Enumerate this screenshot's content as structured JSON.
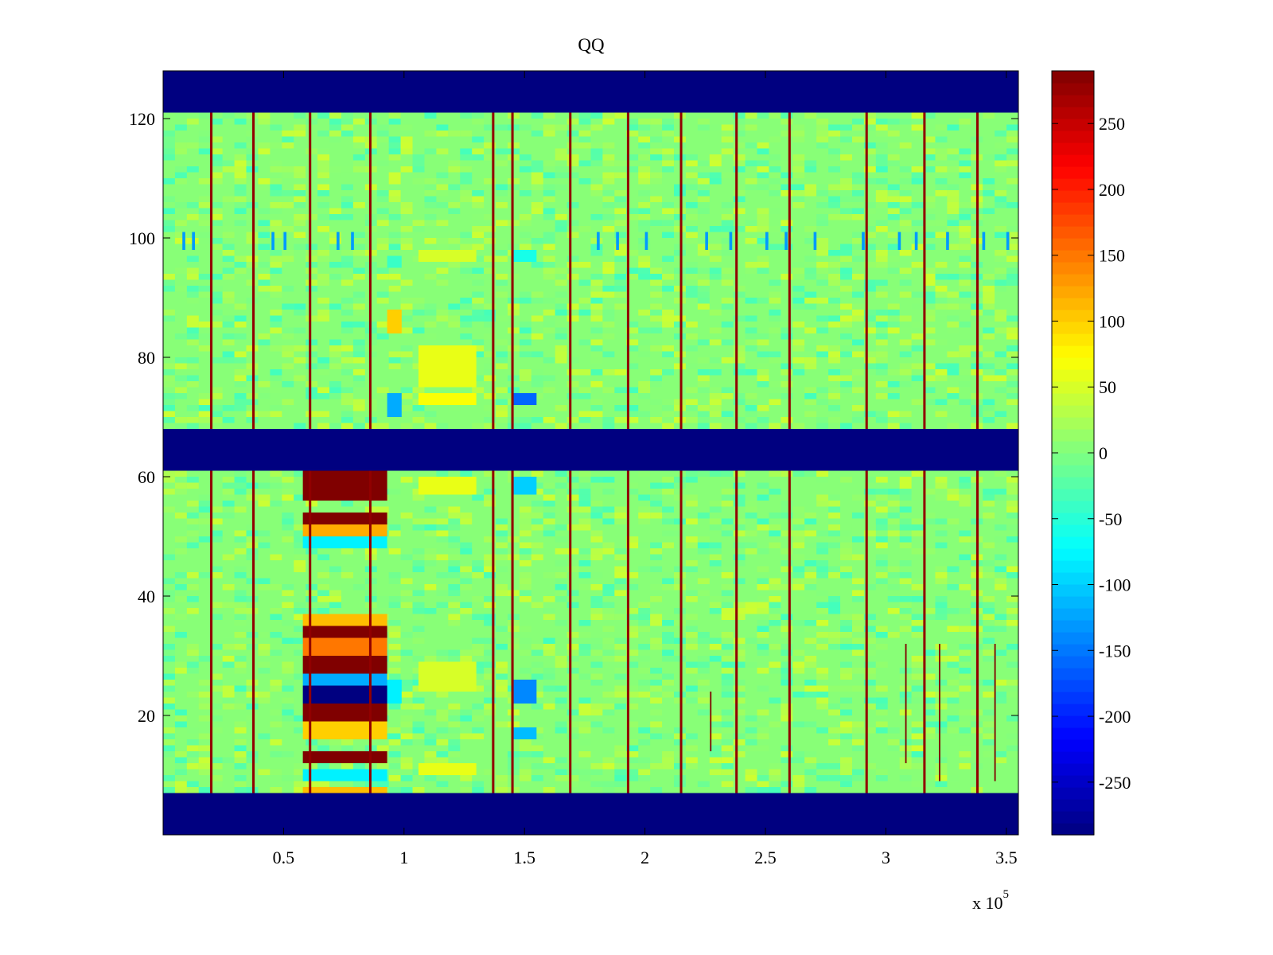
{
  "chart_data": {
    "type": "heatmap",
    "title": "QQ",
    "xlabel": "",
    "ylabel": "",
    "x_exponent_label": "x 10",
    "x_exponent": "5",
    "xlim": [
      0.0,
      3.55
    ],
    "ylim": [
      0,
      128
    ],
    "x_ticks": [
      0.5,
      1,
      1.5,
      2,
      2.5,
      3,
      3.5
    ],
    "x_tick_labels": [
      "0.5",
      "1",
      "1.5",
      "2",
      "2.5",
      "3",
      "3.5"
    ],
    "y_ticks": [
      20,
      40,
      60,
      80,
      100,
      120
    ],
    "y_tick_labels": [
      "20",
      "40",
      "60",
      "80",
      "100",
      "120"
    ],
    "colormap": "jet",
    "clim": [
      -290,
      290
    ],
    "colorbar": {
      "placement": "right",
      "ticks": [
        250,
        200,
        150,
        100,
        50,
        0,
        -50,
        -100,
        -150,
        -200,
        -250
      ],
      "tick_labels": [
        "250",
        "200",
        "150",
        "100",
        "50",
        "0",
        "-50",
        "-100",
        "-150",
        "-200",
        "-250"
      ]
    },
    "background_value": 5,
    "empty_row_bands": [
      [
        0,
        7
      ],
      [
        61,
        68
      ],
      [
        121,
        128
      ]
    ],
    "empty_band_value": -290,
    "spike_columns_x": [
      0.2,
      0.375,
      0.61,
      0.86,
      1.37,
      1.45,
      1.69,
      1.93,
      2.15,
      2.38,
      2.6,
      2.92,
      3.16,
      3.38
    ],
    "spike_value": 280,
    "block_x_range": [
      0.58,
      0.93
    ],
    "block_rows": [
      {
        "y": [
          56,
          61
        ],
        "value": 290
      },
      {
        "y": [
          52,
          54
        ],
        "value": 290
      },
      {
        "y": [
          50,
          52
        ],
        "value": 120
      },
      {
        "y": [
          48,
          50
        ],
        "value": -80
      },
      {
        "y": [
          35,
          37
        ],
        "value": 110
      },
      {
        "y": [
          33,
          35
        ],
        "value": 290
      },
      {
        "y": [
          30,
          33
        ],
        "value": 150
      },
      {
        "y": [
          27,
          30
        ],
        "value": 290
      },
      {
        "y": [
          25,
          27
        ],
        "value": -120
      },
      {
        "y": [
          22,
          25
        ],
        "value": -290
      },
      {
        "y": [
          19,
          22
        ],
        "value": 290
      },
      {
        "y": [
          16,
          19
        ],
        "value": 100
      },
      {
        "y": [
          12,
          14
        ],
        "value": 290
      },
      {
        "y": [
          9,
          11
        ],
        "value": -80
      },
      {
        "y": [
          7,
          8
        ],
        "value": 110
      }
    ],
    "patches": [
      {
        "x": [
          0.93,
          0.99
        ],
        "y": [
          22,
          26
        ],
        "value": -80
      },
      {
        "x": [
          0.93,
          0.99
        ],
        "y": [
          70,
          74
        ],
        "value": -120
      },
      {
        "x": [
          0.93,
          0.99
        ],
        "y": [
          84,
          88
        ],
        "value": 100
      },
      {
        "x": [
          0.93,
          0.99
        ],
        "y": [
          95,
          97
        ],
        "value": -40
      },
      {
        "x": [
          1.45,
          1.55
        ],
        "y": [
          22,
          26
        ],
        "value": -140
      },
      {
        "x": [
          1.45,
          1.55
        ],
        "y": [
          16,
          18
        ],
        "value": -110
      },
      {
        "x": [
          1.45,
          1.55
        ],
        "y": [
          57,
          60
        ],
        "value": -100
      },
      {
        "x": [
          1.45,
          1.55
        ],
        "y": [
          72,
          74
        ],
        "value": -160
      },
      {
        "x": [
          1.45,
          1.55
        ],
        "y": [
          96,
          98
        ],
        "value": -60
      },
      {
        "x": [
          1.06,
          1.3
        ],
        "y": [
          75,
          82
        ],
        "value": 60
      },
      {
        "x": [
          1.06,
          1.3
        ],
        "y": [
          72,
          74
        ],
        "value": 70
      },
      {
        "x": [
          1.06,
          1.3
        ],
        "y": [
          96,
          98
        ],
        "value": 50
      },
      {
        "x": [
          1.06,
          1.3
        ],
        "y": [
          57,
          60
        ],
        "value": 60
      },
      {
        "x": [
          1.06,
          1.3
        ],
        "y": [
          24,
          29
        ],
        "value": 50
      },
      {
        "x": [
          1.06,
          1.3
        ],
        "y": [
          10,
          12
        ],
        "value": 60
      }
    ],
    "row_100_blue_ticks_x": [
      0.08,
      0.12,
      0.45,
      0.5,
      0.72,
      0.78,
      1.8,
      1.88,
      2.0,
      2.25,
      2.35,
      2.5,
      2.58,
      2.7,
      2.9,
      3.05,
      3.12,
      3.25,
      3.4,
      3.5
    ],
    "short_dark_lines": [
      {
        "x": 3.08,
        "y": [
          12,
          32
        ]
      },
      {
        "x": 3.22,
        "y": [
          9,
          32
        ]
      },
      {
        "x": 3.45,
        "y": [
          9,
          32
        ]
      },
      {
        "x": 2.27,
        "y": [
          14,
          24
        ]
      }
    ]
  }
}
